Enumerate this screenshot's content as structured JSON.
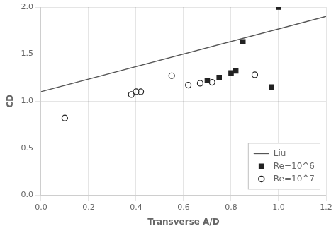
{
  "chart_data": {
    "type": "scatter",
    "xlabel": "Transverse A/D",
    "ylabel": "CD",
    "xlim": [
      0,
      1.2
    ],
    "ylim": [
      0.0,
      2.0
    ],
    "xticks": [
      {
        "value": 0,
        "label": "0.0"
      },
      0.2,
      0.4,
      0.6,
      0.8,
      {
        "value": 1.0,
        "label": "1.0"
      },
      1.2
    ],
    "yticks": [
      {
        "value": 0.0,
        "label": "0.0"
      },
      0.5,
      {
        "value": 1.0,
        "label": "1.0"
      },
      1.5,
      {
        "value": 2.0,
        "label": "2.0"
      }
    ],
    "grid": true,
    "legend": "lower right",
    "series": [
      {
        "name": "Liu",
        "type": "line",
        "line_style": "solid",
        "color": "#555555",
        "x": [
          0,
          1.2
        ],
        "values": [
          1.1,
          1.9
        ]
      },
      {
        "name": "Re=10^6",
        "type": "scatter",
        "marker": "square",
        "color": "#222222",
        "x": [
          0.7,
          0.75,
          0.8,
          0.82,
          0.85,
          0.97,
          1.0
        ],
        "values": [
          1.22,
          1.25,
          1.3,
          1.32,
          1.63,
          1.15,
          2.0
        ]
      },
      {
        "name": "Re=10^7",
        "type": "scatter",
        "marker": "circle_open",
        "color": "#222222",
        "x": [
          0.1,
          0.38,
          0.4,
          0.42,
          0.55,
          0.62,
          0.67,
          0.72,
          0.9
        ],
        "values": [
          0.82,
          1.07,
          1.1,
          1.1,
          1.27,
          1.17,
          1.19,
          1.2,
          1.28
        ]
      }
    ]
  }
}
